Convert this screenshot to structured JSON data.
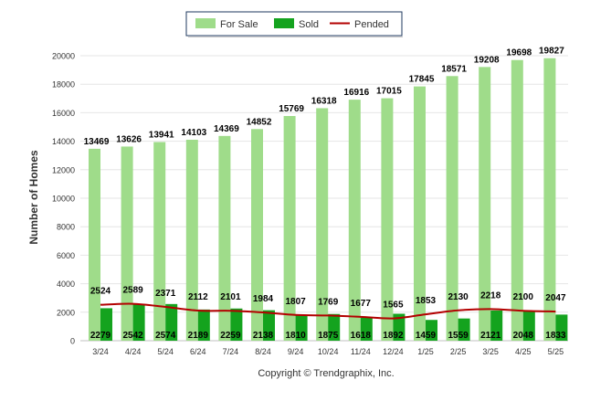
{
  "chart_data": {
    "type": "bar",
    "categories": [
      "3/24",
      "4/24",
      "5/24",
      "6/24",
      "7/24",
      "8/24",
      "9/24",
      "10/24",
      "11/24",
      "12/24",
      "1/25",
      "2/25",
      "3/25",
      "4/25",
      "5/25"
    ],
    "series": [
      {
        "name": "For Sale",
        "type": "bar",
        "color": "#9fdc8a",
        "values": [
          13469,
          13626,
          13941,
          14103,
          14369,
          14852,
          15769,
          16318,
          16916,
          17015,
          17845,
          18571,
          19208,
          19698,
          19827
        ]
      },
      {
        "name": "Sold",
        "type": "bar",
        "color": "#14a31e",
        "values": [
          2279,
          2542,
          2574,
          2189,
          2259,
          2138,
          1810,
          1875,
          1618,
          1892,
          1459,
          1559,
          2121,
          2048,
          1833
        ]
      },
      {
        "name": "Pended",
        "type": "line",
        "color": "#b30000",
        "values": [
          2524,
          2589,
          2371,
          2112,
          2101,
          1984,
          1807,
          1769,
          1677,
          1565,
          1853,
          2130,
          2218,
          2100,
          2047
        ]
      }
    ],
    "ylabel": "Number of Homes",
    "ylim": [
      0,
      20000
    ],
    "yticks": [
      0,
      2000,
      4000,
      6000,
      8000,
      10000,
      12000,
      14000,
      16000,
      18000,
      20000
    ],
    "grid": true,
    "legend_position": "top-center"
  },
  "footer": {
    "copyright": "Copyright © Trendgraphix, Inc."
  }
}
